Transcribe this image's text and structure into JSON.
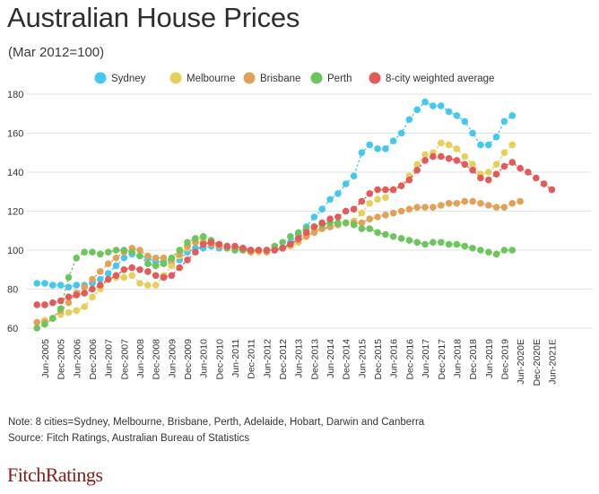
{
  "title": "Australian House Prices",
  "subtitle": "(Mar 2012=100)",
  "note": "Note: 8 cities=Sydney, Melbourne, Brisbane, Perth, Adelaide, Hobart, Darwin and Canberra",
  "source": "Source: Fitch Ratings, Australian Bureau of Statistics",
  "logo": "FitchRatings",
  "chart_data": {
    "type": "line",
    "title": "Australian House Prices",
    "subtitle": "(Mar 2012=100)",
    "ylabel": "",
    "xlabel": "",
    "ylim": [
      50,
      180
    ],
    "yticks": [
      60,
      80,
      100,
      120,
      140,
      160,
      180
    ],
    "grid": "horizontal",
    "legend": "top",
    "x_start": "Mar 2005",
    "x_step": "quarter",
    "x_tick_labels": [
      "Jun-2005",
      "Dec-2005",
      "Jun-2006",
      "Dec-2006",
      "Jun-2007",
      "Dec-2007",
      "Jun-2008",
      "Dec-2008",
      "Jun-2009",
      "Dec-2009",
      "Jun-2010",
      "Dec-2010",
      "Jun-2011",
      "Dec-2011",
      "Jun-2012",
      "Dec-2012",
      "Jun-2013",
      "Dec-2013",
      "Jun-2014",
      "Dec-2014",
      "Jun-2015",
      "Dec-2015",
      "Jun-2016",
      "Dec-2016",
      "Jun-2017",
      "Dec-2017",
      "Jun-2018",
      "Dec-2018",
      "Jun-2019",
      "Dec-2019",
      "Jun-2020E",
      "Dec-2020E",
      "Jun-2021E"
    ],
    "series": [
      {
        "name": "Sydney",
        "color": "#44c8ef",
        "values": [
          83,
          83,
          82,
          82,
          81,
          82,
          82,
          83,
          85,
          88,
          92,
          96,
          98,
          97,
          96,
          94,
          94,
          93,
          95,
          99,
          101,
          101,
          102,
          101,
          102,
          101,
          101,
          100,
          100,
          100,
          100,
          101,
          104,
          108,
          112,
          117,
          121,
          126,
          129,
          134,
          138,
          150,
          154,
          152,
          152,
          156,
          160,
          167,
          172,
          176,
          174,
          174,
          171,
          169,
          166,
          160,
          154,
          154,
          158,
          166,
          169
        ]
      },
      {
        "name": "Melbourne",
        "color": "#e6cf5b",
        "values": [
          63,
          64,
          65,
          67,
          68,
          69,
          71,
          76,
          80,
          85,
          86,
          86,
          87,
          83,
          82,
          82,
          87,
          92,
          97,
          101,
          105,
          106,
          105,
          103,
          101,
          101,
          100,
          100,
          99,
          100,
          101,
          101,
          102,
          104,
          107,
          110,
          111,
          112,
          113,
          114,
          115,
          119,
          124,
          126,
          127,
          131,
          133,
          138,
          144,
          149,
          150,
          155,
          154,
          152,
          148,
          144,
          139,
          140,
          144,
          150,
          154
        ]
      },
      {
        "name": "Brisbane",
        "color": "#e2a156",
        "values": [
          63,
          63,
          65,
          69,
          73,
          78,
          81,
          85,
          89,
          93,
          96,
          99,
          101,
          100,
          97,
          96,
          96,
          95,
          98,
          102,
          104,
          104,
          103,
          102,
          101,
          100,
          100,
          99,
          100,
          99,
          100,
          101,
          103,
          105,
          107,
          109,
          111,
          112,
          113,
          114,
          114,
          114,
          116,
          117,
          118,
          119,
          120,
          121,
          122,
          122,
          122,
          123,
          124,
          124,
          125,
          125,
          124,
          123,
          122,
          122,
          124,
          125
        ]
      },
      {
        "name": "Perth",
        "color": "#6cc65d",
        "values": [
          60,
          62,
          65,
          70,
          86,
          96,
          99,
          99,
          98,
          99,
          100,
          100,
          99,
          97,
          93,
          92,
          93,
          96,
          100,
          104,
          106,
          107,
          105,
          103,
          101,
          100,
          100,
          100,
          100,
          100,
          102,
          104,
          107,
          109,
          111,
          112,
          113,
          114,
          114,
          114,
          113,
          111,
          111,
          109,
          108,
          107,
          106,
          105,
          104,
          103,
          104,
          104,
          103,
          103,
          102,
          101,
          100,
          99,
          98,
          100,
          100
        ]
      },
      {
        "name": "8-city weighted average",
        "color": "#e35a5a",
        "values": [
          72,
          72,
          73,
          74,
          76,
          77,
          78,
          80,
          82,
          85,
          87,
          90,
          91,
          90,
          89,
          87,
          86,
          87,
          91,
          95,
          99,
          103,
          104,
          103,
          102,
          102,
          101,
          100,
          100,
          100,
          100,
          101,
          103,
          106,
          109,
          112,
          114,
          116,
          117,
          120,
          121,
          125,
          129,
          131,
          131,
          131,
          133,
          136,
          141,
          146,
          148,
          148,
          147,
          146,
          144,
          141,
          137,
          136,
          139,
          143,
          145,
          142,
          140,
          137,
          134,
          131
        ]
      }
    ]
  }
}
